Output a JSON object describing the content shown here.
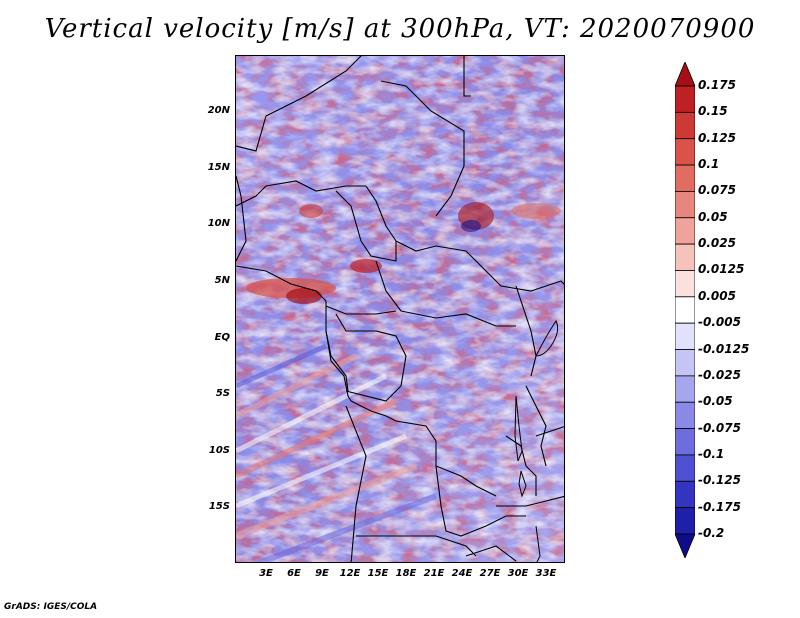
{
  "title": "Vertical velocity [m/s] at 300hPa, VT: 2020070900",
  "credit": "GrADS: IGES/COLA",
  "lat_labels": [
    "20N",
    "15N",
    "10N",
    "5N",
    "EQ",
    "5S",
    "10S",
    "15S"
  ],
  "lon_labels": [
    "3E",
    "6E",
    "9E",
    "12E",
    "15E",
    "18E",
    "21E",
    "24E",
    "27E",
    "30E",
    "33E"
  ],
  "colorbar": {
    "labels": [
      "0.175",
      "0.15",
      "0.125",
      "0.1",
      "0.075",
      "0.05",
      "0.025",
      "0.0125",
      "0.005",
      "-0.005",
      "-0.0125",
      "-0.025",
      "-0.05",
      "-0.075",
      "-0.1",
      "-0.125",
      "-0.175",
      "-0.2"
    ],
    "colors": [
      "#a50f15",
      "#bf2026",
      "#cd3a35",
      "#d9534a",
      "#e06c62",
      "#e7867e",
      "#efa39b",
      "#f5c2bc",
      "#fbe1de",
      "#ffffff",
      "#e1e1fb",
      "#c4c4f5",
      "#a6a6ee",
      "#8a8ae6",
      "#6d6dde",
      "#5050d2",
      "#3434c2",
      "#1f1fa8",
      "#0d0d8a"
    ]
  }
}
